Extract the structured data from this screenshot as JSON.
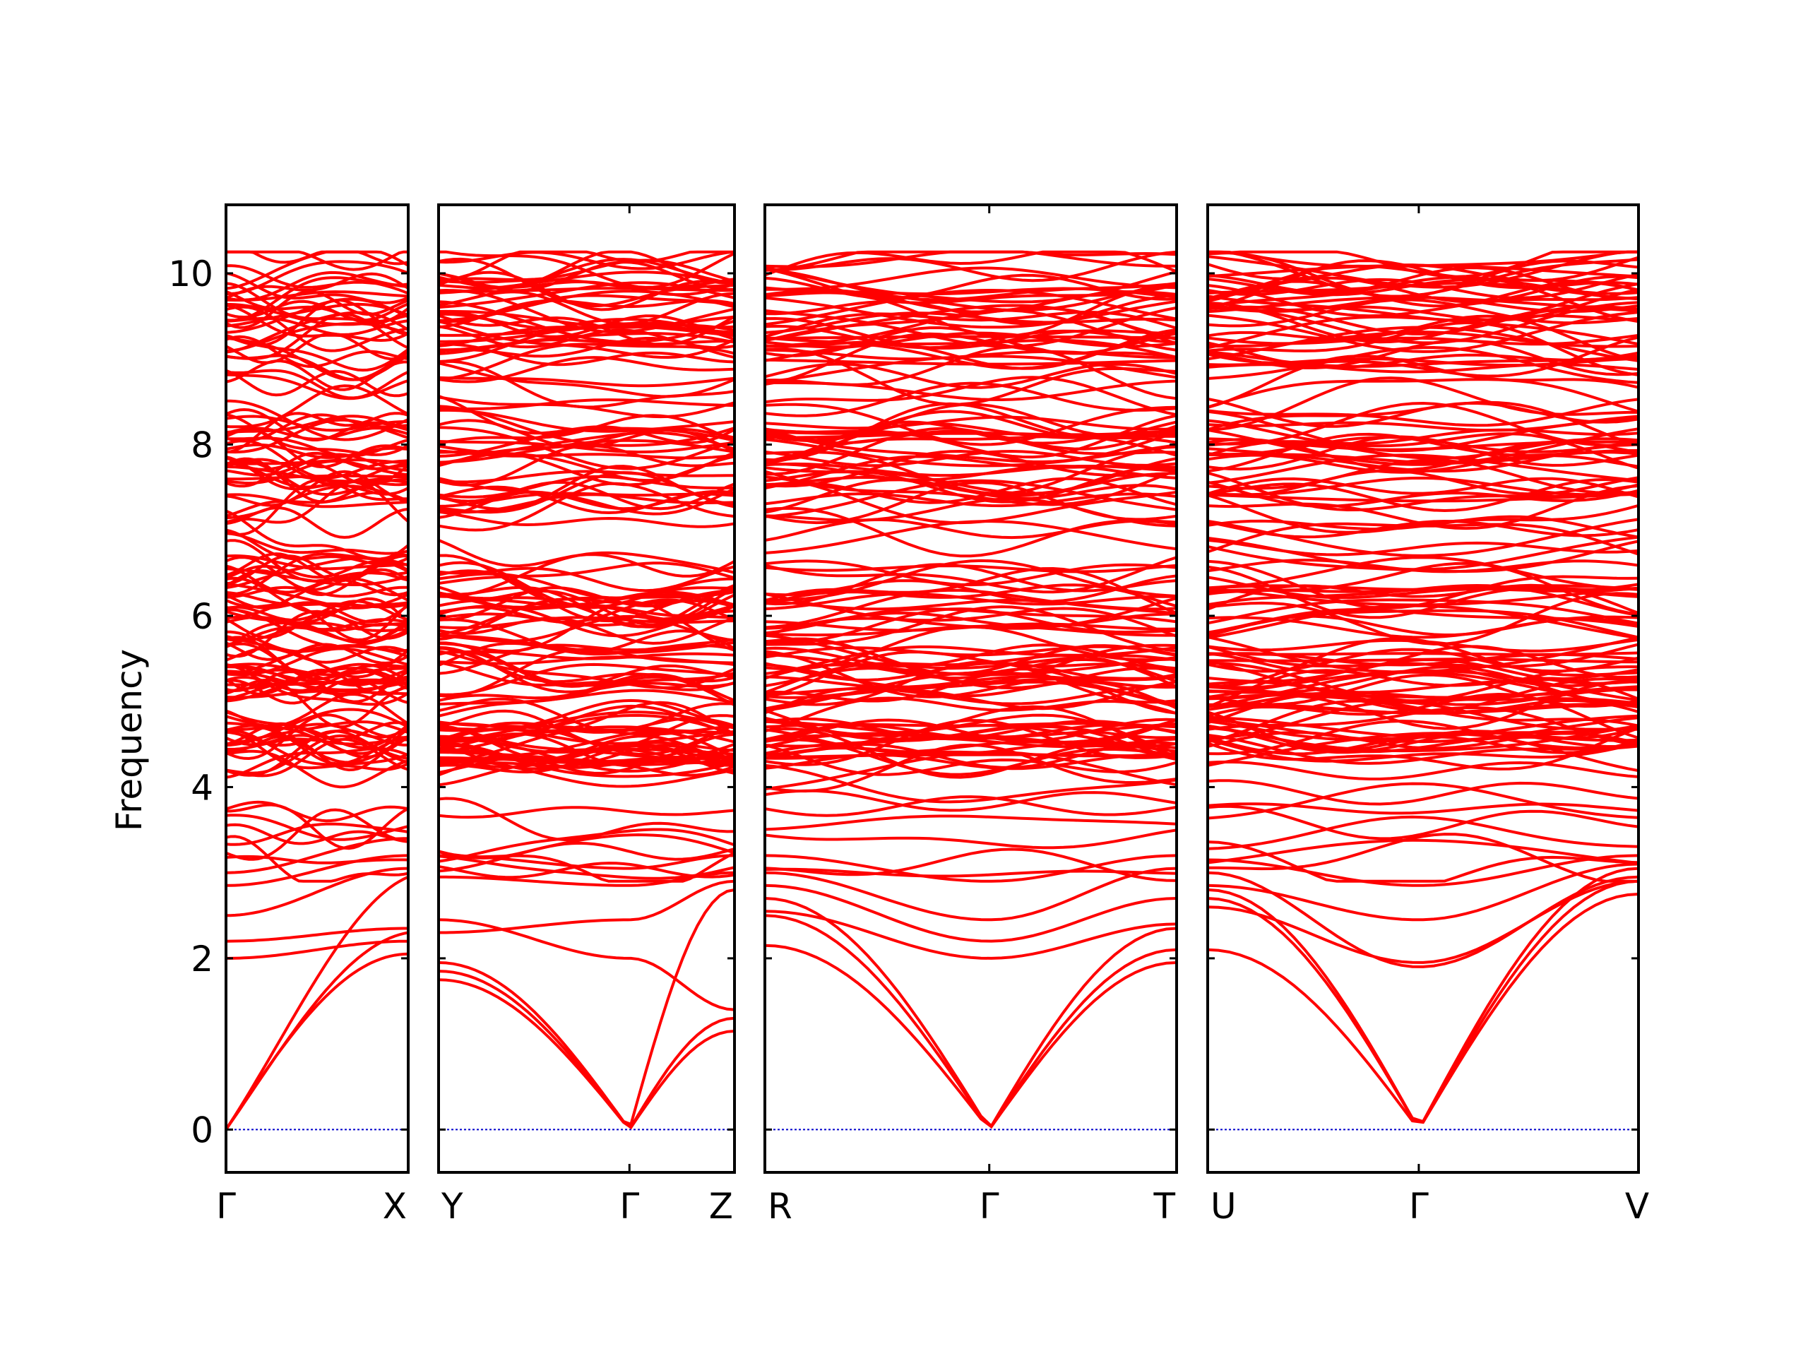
{
  "chart_data": {
    "type": "line",
    "title": "",
    "ylabel": "Frequency",
    "ylim": [
      -0.5,
      10.8
    ],
    "yticks": [
      0,
      2,
      4,
      6,
      8,
      10
    ],
    "ytick_labels": [
      "0",
      "2",
      "4",
      "6",
      "8",
      "10"
    ],
    "colors": {
      "band": "#ff0000",
      "zero_line": "#0000cc",
      "frame": "#000000"
    },
    "panels": [
      {
        "name": "Γ–X",
        "left_label": "Γ",
        "right_label": "X",
        "special_point_label": "",
        "special_point_frac": null,
        "acoustic_start": [
          0,
          0,
          0
        ],
        "acoustic_end": [
          2.05,
          2.3,
          2.95
        ],
        "low_optical": [
          [
            2.0,
            2.2
          ],
          [
            2.2,
            2.35
          ],
          [
            2.5,
            3.05
          ],
          [
            2.85,
            3.2
          ],
          [
            3.0,
            3.4
          ]
        ]
      },
      {
        "name": "Y–Γ–Z",
        "left_label": "Y",
        "right_label": "Z",
        "special_point_label": "Γ",
        "special_point_frac": 0.645,
        "acoustic_start": [
          1.75,
          1.85,
          1.95
        ],
        "acoustic_end": [
          1.15,
          1.3,
          2.8
        ],
        "low_optical": [
          [
            2.3,
            2.45,
            2.9
          ],
          [
            2.45,
            2.0,
            1.4
          ],
          [
            2.95,
            2.85,
            3.0
          ],
          [
            3.2,
            3.05,
            3.2
          ]
        ]
      },
      {
        "name": "R–Γ–T",
        "left_label": "R",
        "right_label": "T",
        "special_point_label": "Γ",
        "special_point_frac": 0.545,
        "acoustic_start": [
          2.15,
          2.5,
          2.7
        ],
        "acoustic_end": [
          1.95,
          2.1,
          2.35
        ],
        "low_optical": [
          [
            2.55,
            2.0,
            2.4
          ],
          [
            2.85,
            2.2,
            2.7
          ],
          [
            3.0,
            2.45,
            3.05
          ],
          [
            3.2,
            2.9,
            3.2
          ]
        ]
      },
      {
        "name": "U–Γ–V",
        "left_label": "U",
        "right_label": "V",
        "special_point_label": "Γ",
        "special_point_frac": 0.49,
        "acoustic_start": [
          2.1,
          2.7,
          2.8
        ],
        "acoustic_end": [
          2.75,
          2.9,
          3.05
        ],
        "low_optical": [
          [
            2.6,
            1.95,
            2.9
          ],
          [
            2.85,
            2.45,
            3.1
          ],
          [
            3.0,
            1.9,
            2.95
          ],
          [
            3.15,
            2.85,
            3.2
          ]
        ]
      }
    ],
    "optical_band_range": [
      3.0,
      10.25
    ],
    "band_clusters": [
      {
        "center": 4.5,
        "spread": 0.25
      },
      {
        "center": 5.3,
        "spread": 0.3
      },
      {
        "center": 6.2,
        "spread": 0.4
      },
      {
        "center": 7.8,
        "spread": 0.5
      },
      {
        "center": 9.6,
        "spread": 0.6
      }
    ]
  }
}
